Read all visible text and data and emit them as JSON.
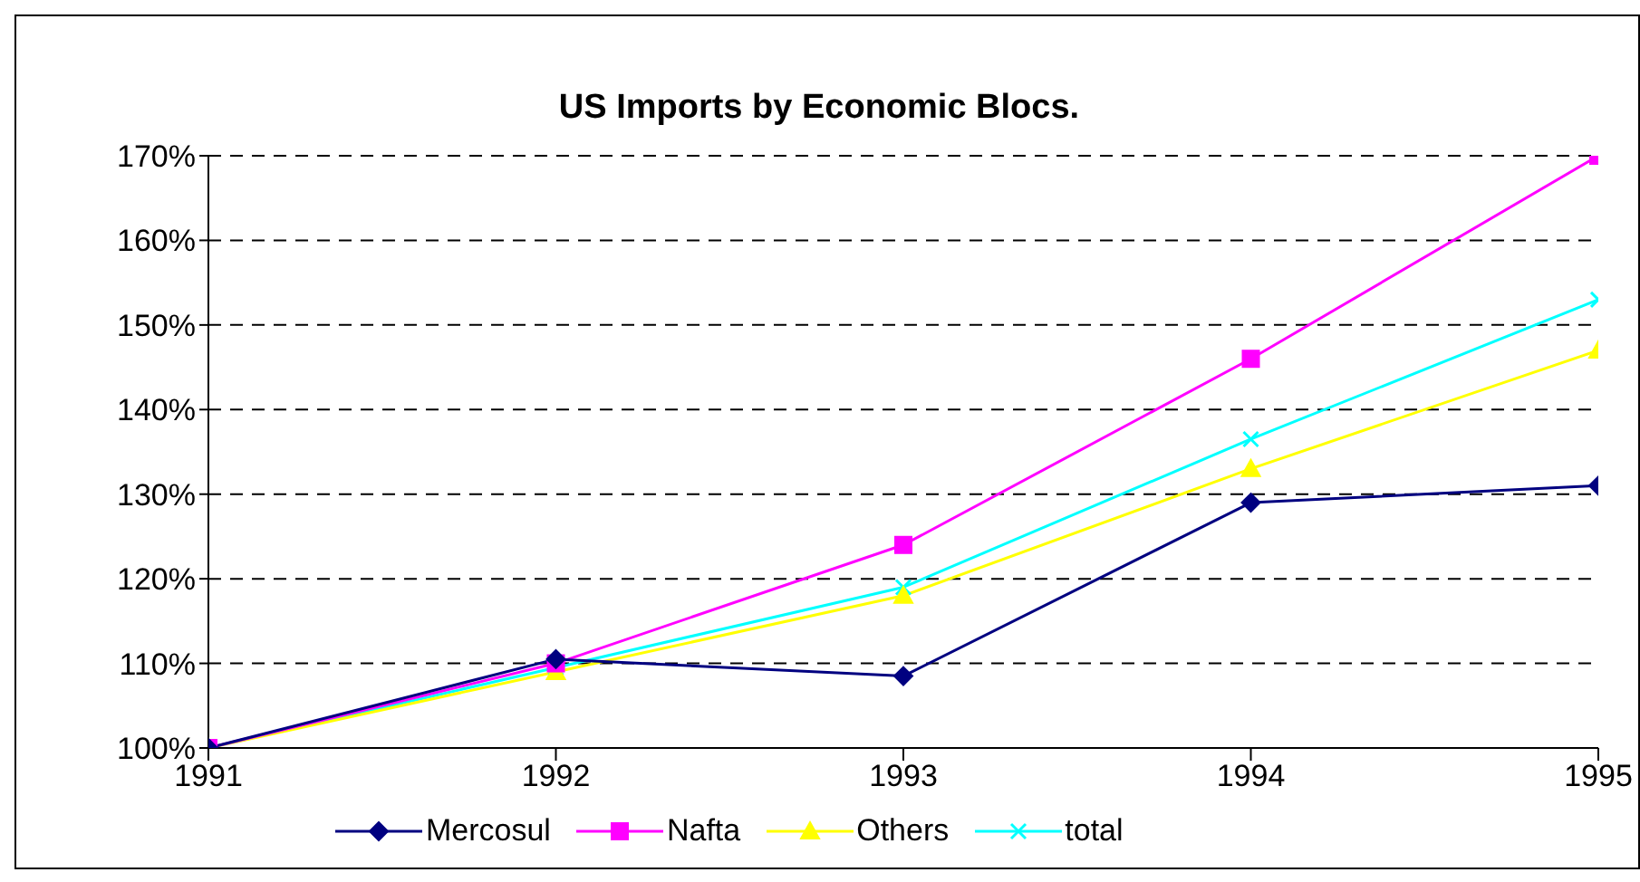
{
  "chart_data": {
    "type": "line",
    "title": "US Imports by Economic Blocs.",
    "categories": [
      "1991",
      "1992",
      "1993",
      "1994",
      "1995"
    ],
    "series": [
      {
        "name": "Mercosul",
        "color": "#000080",
        "marker": "diamond",
        "values": [
          100,
          110.5,
          108.5,
          129,
          131
        ]
      },
      {
        "name": "Nafta",
        "color": "#ff00ff",
        "marker": "square",
        "values": [
          100,
          110,
          124,
          146,
          170
        ]
      },
      {
        "name": "Others",
        "color": "#ffff00",
        "marker": "triangle",
        "values": [
          100,
          109,
          118,
          133,
          147
        ]
      },
      {
        "name": "total",
        "color": "#00ffff",
        "marker": "cross",
        "values": [
          100,
          109.5,
          119,
          136.5,
          153
        ]
      }
    ],
    "ylim": [
      100,
      170
    ],
    "yticks": [
      {
        "value": 100,
        "label": "100%"
      },
      {
        "value": 110,
        "label": "110%"
      },
      {
        "value": 120,
        "label": "120%"
      },
      {
        "value": 130,
        "label": "130%"
      },
      {
        "value": 140,
        "label": "140%"
      },
      {
        "value": 150,
        "label": "150%"
      },
      {
        "value": 160,
        "label": "160%"
      },
      {
        "value": 170,
        "label": "170%"
      }
    ],
    "grid": "y",
    "legend": "bottom",
    "line_style": "solid"
  }
}
